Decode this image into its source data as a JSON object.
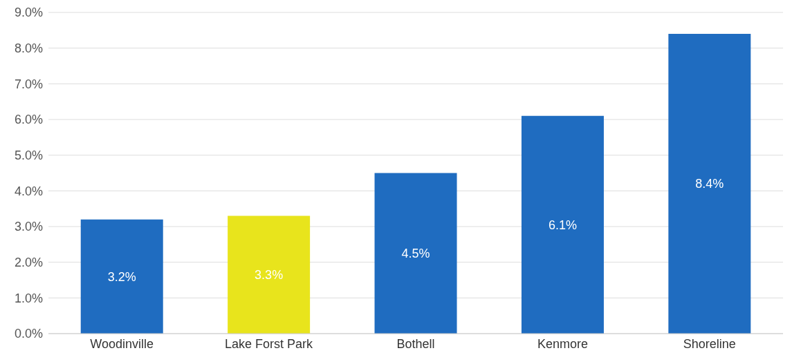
{
  "chart_data": {
    "type": "bar",
    "categories": [
      "Woodinville",
      "Lake Forst Park",
      "Bothell",
      "Kenmore",
      "Shoreline"
    ],
    "values": [
      3.2,
      3.3,
      4.5,
      6.1,
      8.4
    ],
    "colors": [
      "#1f6cc0",
      "#e8e41c",
      "#1f6cc0",
      "#1f6cc0",
      "#1f6cc0"
    ],
    "value_labels": [
      "3.2%",
      "3.3%",
      "4.5%",
      "6.1%",
      "8.4%"
    ],
    "ylim": [
      0,
      9
    ],
    "yticks": [
      {
        "value": 0,
        "label": "0.0%"
      },
      {
        "value": 1,
        "label": "1.0%"
      },
      {
        "value": 2,
        "label": "2.0%"
      },
      {
        "value": 3,
        "label": "3.0%"
      },
      {
        "value": 4,
        "label": "4.0%"
      },
      {
        "value": 5,
        "label": "5.0%"
      },
      {
        "value": 6,
        "label": "6.0%"
      },
      {
        "value": 7,
        "label": "7.0%"
      },
      {
        "value": 8,
        "label": "8.0%"
      },
      {
        "value": 9,
        "label": "9.0%"
      }
    ],
    "grid": "y"
  }
}
